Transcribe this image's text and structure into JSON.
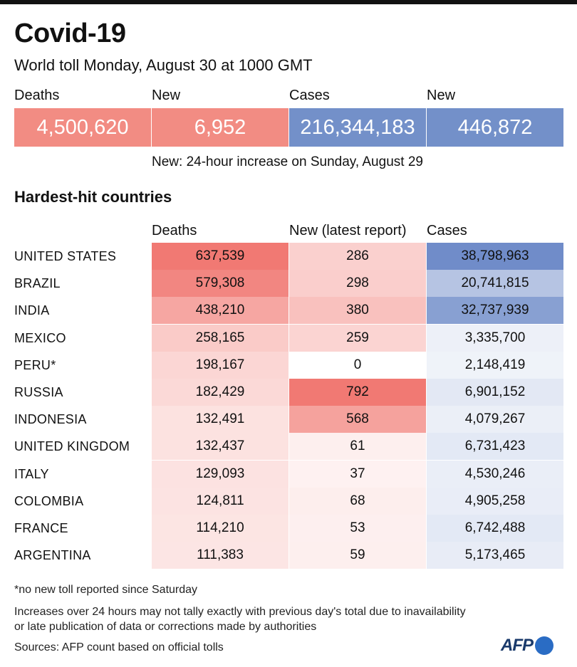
{
  "header": {
    "title": "Covid-19",
    "subtitle": "World toll Monday, August 30 at 1000 GMT"
  },
  "headline": [
    {
      "label": "Deaths",
      "value": "4,500,620"
    },
    {
      "label": "New",
      "value": "6,952"
    },
    {
      "label": "Cases",
      "value": "216,344,183"
    },
    {
      "label": "New",
      "value": "446,872"
    }
  ],
  "headline_colors": [
    "#f28c83",
    "#f28c83",
    "#7390c9",
    "#7390c9"
  ],
  "note": "New: 24-hour increase on Sunday, August 29",
  "section_title": "Hardest-hit countries",
  "columns": [
    "Deaths",
    "New (latest report)",
    "Cases"
  ],
  "chart_data": {
    "type": "table",
    "title": "Hardest-hit countries",
    "columns": [
      "Deaths",
      "New (latest report)",
      "Cases"
    ],
    "rows": [
      {
        "country": "UNITED STATES",
        "deaths": "637,539",
        "new": "286",
        "cases": "38,798,963"
      },
      {
        "country": "BRAZIL",
        "deaths": "579,308",
        "new": "298",
        "cases": "20,741,815"
      },
      {
        "country": "INDIA",
        "deaths": "438,210",
        "new": "380",
        "cases": "32,737,939"
      },
      {
        "country": "MEXICO",
        "deaths": "258,165",
        "new": "259",
        "cases": "3,335,700"
      },
      {
        "country": "PERU*",
        "deaths": "198,167",
        "new": "0",
        "cases": "2,148,419"
      },
      {
        "country": "RUSSIA",
        "deaths": "182,429",
        "new": "792",
        "cases": "6,901,152"
      },
      {
        "country": "INDONESIA",
        "deaths": "132,491",
        "new": "568",
        "cases": "4,079,267"
      },
      {
        "country": "UNITED KINGDOM",
        "deaths": "132,437",
        "new": "61",
        "cases": "6,731,423"
      },
      {
        "country": "ITALY",
        "deaths": "129,093",
        "new": "37",
        "cases": "4,530,246"
      },
      {
        "country": "COLOMBIA",
        "deaths": "124,811",
        "new": "68",
        "cases": "4,905,258"
      },
      {
        "country": "FRANCE",
        "deaths": "114,210",
        "new": "53",
        "cases": "6,742,488"
      },
      {
        "country": "ARGENTINA",
        "deaths": "111,383",
        "new": "59",
        "cases": "5,173,465"
      }
    ]
  },
  "footnotes": {
    "asterisk": "*no new toll reported since Saturday",
    "increase_line1": "Increases over 24 hours may not tally exactly with previous day's total due to inavailability",
    "increase_line2": "or late publication of data or corrections made by authorities",
    "sources": "Sources: AFP count based on official tolls"
  },
  "logo_text": "AFP"
}
